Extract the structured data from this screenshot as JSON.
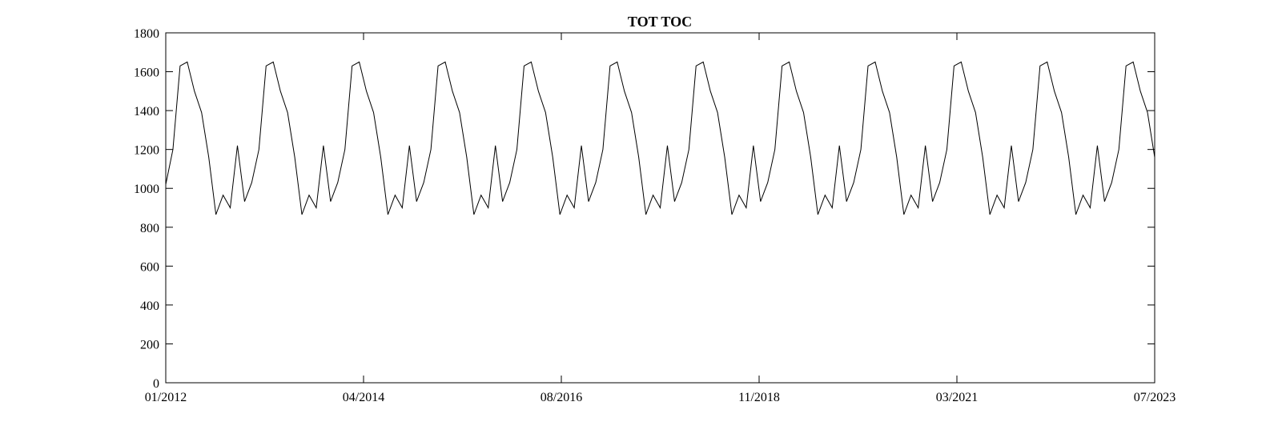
{
  "chart_data": {
    "type": "line",
    "title": "TOT TOC",
    "xlabel": "",
    "ylabel": "",
    "ylim": [
      0,
      1800
    ],
    "yticks": [
      0,
      200,
      400,
      600,
      800,
      1000,
      1200,
      1400,
      1600,
      1800
    ],
    "x_tick_labels": [
      "01/2012",
      "04/2014",
      "08/2016",
      "11/2018",
      "03/2021",
      "07/2023"
    ],
    "x_start": "01/2012",
    "x_end": "07/2023",
    "grid": false,
    "legend": "none",
    "line_color": "#000000",
    "series": [
      {
        "values": [
          1020,
          1200,
          1630,
          1650,
          1500,
          1390,
          1160,
          865,
          965,
          900,
          1220,
          932,
          1030,
          1200,
          1630,
          1650,
          1500,
          1390,
          1160,
          865,
          965,
          900,
          1220,
          932,
          1030,
          1200,
          1630,
          1650,
          1500,
          1390,
          1160,
          865,
          965,
          900,
          1220,
          932,
          1030,
          1200,
          1630,
          1650,
          1500,
          1390,
          1160,
          865,
          965,
          900,
          1220,
          932,
          1030,
          1200,
          1630,
          1650,
          1500,
          1390,
          1160,
          865,
          965,
          900,
          1220,
          932,
          1030,
          1200,
          1630,
          1650,
          1500,
          1390,
          1160,
          865,
          965,
          900,
          1220,
          932,
          1030,
          1200,
          1630,
          1650,
          1500,
          1390,
          1160,
          865,
          965,
          900,
          1220,
          932,
          1030,
          1200,
          1630,
          1650,
          1500,
          1390,
          1160,
          865,
          965,
          900,
          1220,
          932,
          1030,
          1200,
          1630,
          1650,
          1500,
          1390,
          1160,
          865,
          965,
          900,
          1220,
          932,
          1030,
          1200,
          1630,
          1650,
          1500,
          1390,
          1160,
          865,
          965,
          900,
          1220,
          932,
          1030,
          1200,
          1630,
          1650,
          1500,
          1390,
          1160,
          865,
          965,
          900,
          1220,
          932,
          1030,
          1200,
          1630,
          1650,
          1500,
          1390,
          1160
        ]
      }
    ]
  }
}
